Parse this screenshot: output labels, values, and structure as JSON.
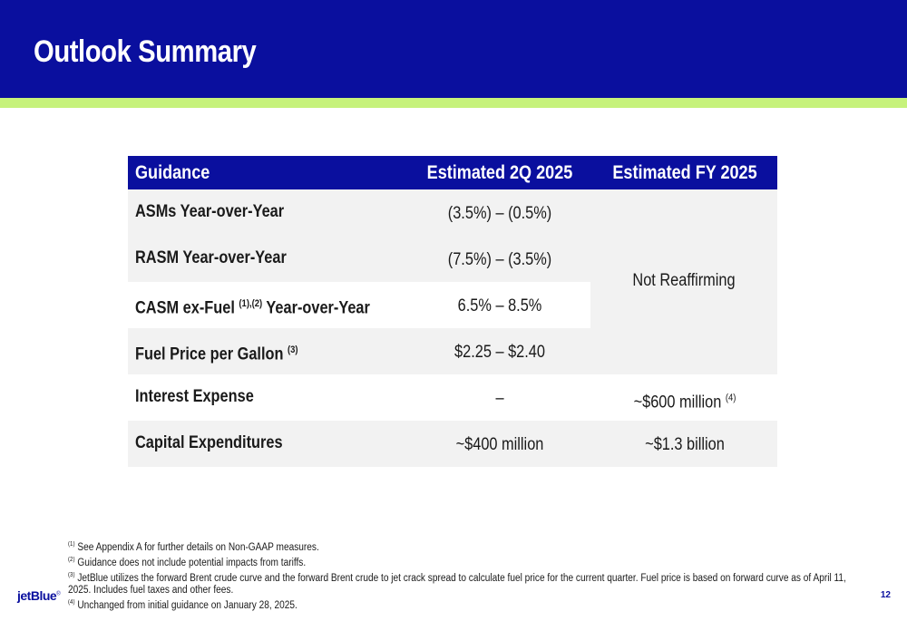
{
  "slide": {
    "title": "Outlook Summary",
    "page_number": "12",
    "logo_text": "jetBlue",
    "logo_mark": "®"
  },
  "table": {
    "headers": [
      "Guidance",
      "Estimated 2Q 2025",
      "Estimated FY 2025"
    ],
    "rows": [
      {
        "label": "ASMs Year-over-Year",
        "label_note": "",
        "label_suffix": "",
        "q2": "(3.5%) – (0.5%)"
      },
      {
        "label": "RASM Year-over-Year",
        "label_note": "",
        "label_suffix": "",
        "q2": "(7.5%) – (3.5%)"
      },
      {
        "label": "CASM ex-Fuel ",
        "label_note": "(1),(2)",
        "label_suffix": " Year-over-Year",
        "q2": "6.5% – 8.5%"
      },
      {
        "label": "Fuel Price per Gallon ",
        "label_note": "(3)",
        "label_suffix": "",
        "q2": "$2.25 – $2.40"
      },
      {
        "label": "Interest Expense",
        "label_note": "",
        "label_suffix": "",
        "q2": "–",
        "fy": "~$600 million ",
        "fy_note": "(4)"
      },
      {
        "label": "Capital Expenditures",
        "label_note": "",
        "label_suffix": "",
        "q2": "~$400 million",
        "fy": "~$1.3 billion",
        "fy_note": ""
      }
    ],
    "fy_merged_value": "Not Reaffirming"
  },
  "footnotes": [
    {
      "mark": "(1)",
      "text": " See Appendix A for further details on Non-GAAP measures."
    },
    {
      "mark": "(2)",
      "text": " Guidance does not include potential impacts from tariffs."
    },
    {
      "mark": "(3)",
      "text": " JetBlue utilizes the forward Brent crude curve and the forward Brent crude to jet crack spread to calculate fuel price for the current quarter. Fuel price is based on forward curve as of April 11, 2025. Includes fuel taxes and other fees."
    },
    {
      "mark": "(4)",
      "text": " Unchanged from initial guidance on January 28, 2025."
    }
  ],
  "colors": {
    "brand_blue": "#0a0f9e",
    "accent_green": "#c6f27b",
    "row_shade": "#f2f2f2"
  }
}
